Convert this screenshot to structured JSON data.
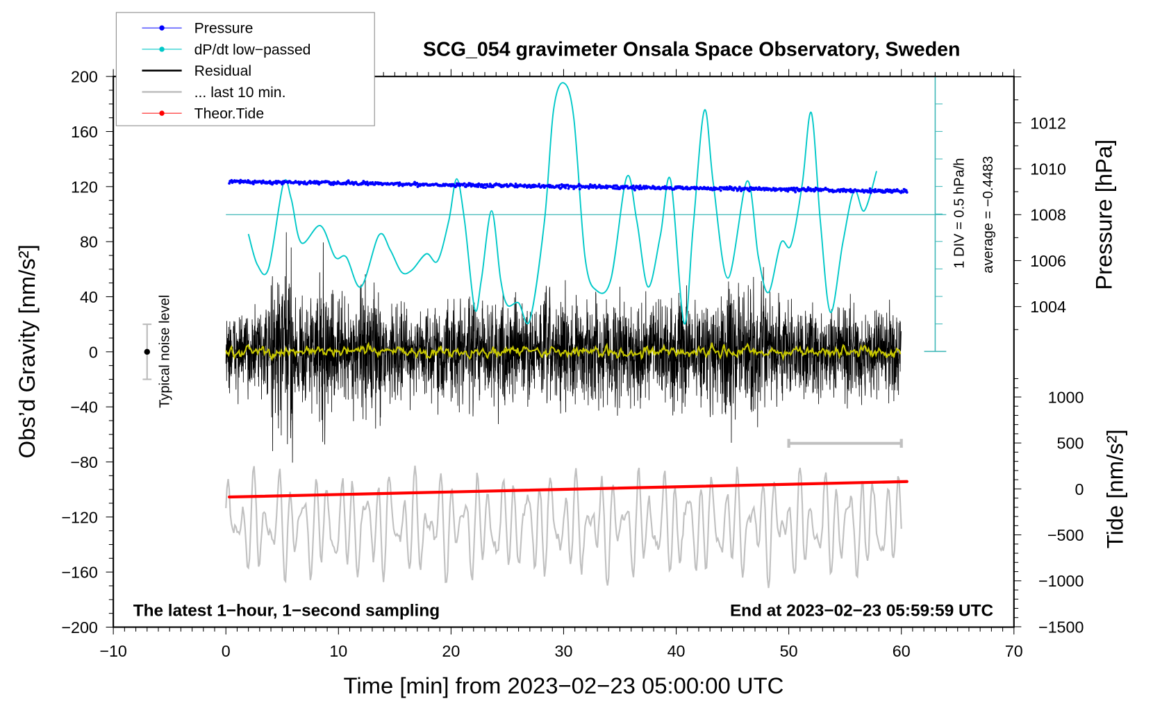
{
  "chart_data": {
    "type": "line",
    "title": "SCG_054 gravimeter Onsala Space Observatory, Sweden",
    "xlabel": "Time [min] from 2023−02−23 05:00:00 UTC",
    "ylabel_left": "Obs’d Gravity [nm/s²]",
    "ylabel_right_top": "Pressure [hPa]",
    "ylabel_right_bottom": "Tide [nm/s²]",
    "xlim": [
      -10,
      70
    ],
    "ylim_left": [
      -200,
      200
    ],
    "ylim_pressure": [
      1002,
      1014
    ],
    "ylim_tide": [
      -1500,
      1500
    ],
    "x_ticks": [
      "−10",
      "0",
      "10",
      "20",
      "30",
      "40",
      "50",
      "60",
      "70"
    ],
    "x_tick_values": [
      -10,
      0,
      10,
      20,
      30,
      40,
      50,
      60,
      70
    ],
    "y_left_ticks": [
      "200",
      "160",
      "120",
      "80",
      "40",
      "0",
      "−40",
      "−80",
      "−120",
      "−160",
      "−200"
    ],
    "y_left_tick_values": [
      200,
      160,
      120,
      80,
      40,
      0,
      -40,
      -80,
      -120,
      -160,
      -200
    ],
    "pressure_ticks": [
      "1012",
      "1010",
      "1008",
      "1006",
      "1004"
    ],
    "pressure_tick_values": [
      1012,
      1010,
      1008,
      1006,
      1004
    ],
    "tide_ticks": [
      "1000",
      "500",
      "0",
      "−500",
      "−1000",
      "−1500"
    ],
    "tide_tick_values": [
      1000,
      500,
      0,
      -500,
      -1000,
      -1500
    ],
    "legend": {
      "placement": "top-left",
      "entries": [
        {
          "label": "Pressure",
          "color": "#0000ff"
        },
        {
          "label": "dP/dt low−passed",
          "color": "#00c8c8"
        },
        {
          "label": "Residual",
          "color": "#000000"
        },
        {
          "label": "... last 10 min.",
          "color": "#c0c0c0"
        },
        {
          "label": "Theor.Tide",
          "color": "#ff0000"
        }
      ]
    },
    "annotations": {
      "bottom_left": "The latest 1−hour, 1−second sampling",
      "bottom_right": "End at 2023−02−23 05:59:59 UTC",
      "div_label": "1 DIV = 0.5 hPa/h",
      "average_label": "average = −0.4483",
      "noise_label": "Typical noise level"
    },
    "series": {
      "pressure": {
        "name": "Pressure",
        "unit": "hPa",
        "start": [
          0.3,
          1009.44
        ],
        "end": [
          60.5,
          1009.02
        ],
        "scatter": 0.08
      },
      "dpdt": {
        "name": "dP/dt low-passed",
        "unit": "hPa/h",
        "points": [
          [
            2.0,
            -0.35
          ],
          [
            2.8,
            -0.91
          ],
          [
            3.8,
            -0.97
          ],
          [
            5.1,
            0.56
          ],
          [
            5.8,
            0.29
          ],
          [
            6.7,
            -0.51
          ],
          [
            8.4,
            -0.2
          ],
          [
            9.7,
            -0.77
          ],
          [
            10.7,
            -0.77
          ],
          [
            12.0,
            -1.31
          ],
          [
            13.6,
            -0.37
          ],
          [
            14.6,
            -0.64
          ],
          [
            15.6,
            -1.04
          ],
          [
            16.5,
            -1.01
          ],
          [
            17.8,
            -0.71
          ],
          [
            18.8,
            -0.84
          ],
          [
            19.8,
            -0.11
          ],
          [
            20.5,
            0.65
          ],
          [
            21.2,
            -0.11
          ],
          [
            22.1,
            -1.71
          ],
          [
            22.7,
            -1.17
          ],
          [
            23.6,
            0.07
          ],
          [
            24.4,
            -1.17
          ],
          [
            25.0,
            -1.64
          ],
          [
            26.0,
            -1.6
          ],
          [
            27.0,
            -1.91
          ],
          [
            28.3,
            -0.11
          ],
          [
            29.1,
            1.89
          ],
          [
            30.0,
            2.39
          ],
          [
            30.9,
            1.76
          ],
          [
            31.9,
            -0.77
          ],
          [
            32.9,
            -1.37
          ],
          [
            34.2,
            -1.17
          ],
          [
            35.6,
            0.68
          ],
          [
            36.5,
            -0.11
          ],
          [
            37.5,
            -1.31
          ],
          [
            38.6,
            -0.37
          ],
          [
            39.5,
            0.63
          ],
          [
            40.7,
            -1.97
          ],
          [
            41.5,
            -0.24
          ],
          [
            42.5,
            1.89
          ],
          [
            43.3,
            0.56
          ],
          [
            44.6,
            -1.15
          ],
          [
            46.3,
            0.61
          ],
          [
            47.3,
            -0.77
          ],
          [
            48.2,
            -1.41
          ],
          [
            49.3,
            -0.51
          ],
          [
            50.2,
            -0.55
          ],
          [
            51.2,
            0.56
          ],
          [
            52.0,
            1.85
          ],
          [
            52.8,
            -0.11
          ],
          [
            53.7,
            -1.77
          ],
          [
            54.8,
            -0.51
          ],
          [
            55.8,
            0.43
          ],
          [
            56.7,
            0.07
          ],
          [
            57.8,
            0.79
          ]
        ]
      },
      "residual": {
        "name": "Residual",
        "unit": "nm/s²",
        "range_min": [
          0,
          60
        ],
        "envelope_per_minute": [
          30,
          30,
          32,
          35,
          70,
          75,
          45,
          40,
          72,
          42,
          40,
          38,
          50,
          48,
          36,
          35,
          35,
          34,
          36,
          38,
          42,
          40,
          40,
          38,
          40,
          40,
          38,
          36,
          45,
          45,
          42,
          40,
          40,
          38,
          40,
          40,
          38,
          40,
          38,
          40,
          40,
          40,
          40,
          44,
          55,
          50,
          48,
          50,
          38,
          36,
          36,
          35,
          36,
          35,
          35,
          35,
          34,
          35,
          35,
          34
        ]
      },
      "smoothed": {
        "name": "Residual smoothed",
        "color": "#c8c800",
        "amplitude": 4
      },
      "last10": {
        "name": "... last 10 min.",
        "unit": "nm/s²",
        "center": -126,
        "amplitude": 26
      },
      "tide": {
        "name": "Theor.Tide",
        "unit": "nm/s²",
        "start": [
          0.3,
          -88
        ],
        "end": [
          60.5,
          80
        ]
      }
    },
    "noise_bar": {
      "x": -7,
      "center": 0,
      "half_range": 20
    },
    "scale_bar_min": [
      50,
      60
    ],
    "dpdt_axis": {
      "div": 0.5,
      "divisions": 10
    }
  }
}
